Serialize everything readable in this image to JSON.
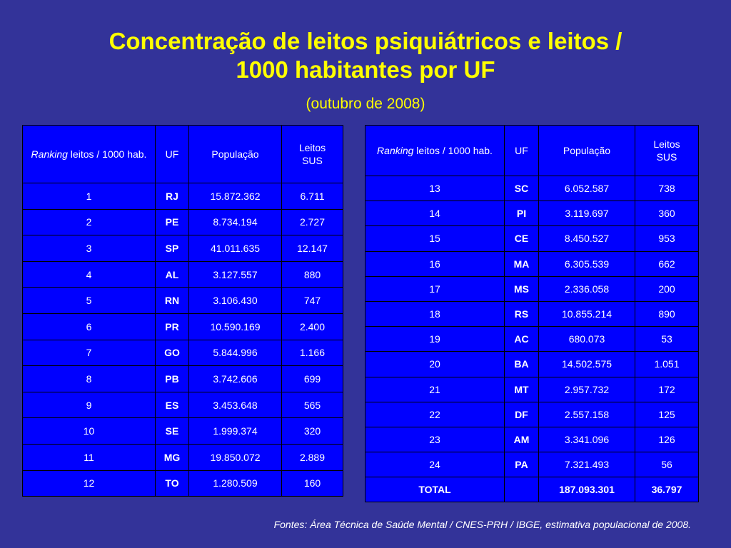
{
  "title_line1": "Concentração de leitos psiquiátricos e leitos /",
  "title_line2": "1000 habitantes por UF",
  "subtitle": "(outubro de 2008)",
  "headers": {
    "ranking_italic": "Ranking",
    "ranking_rest": " leitos / 1000 hab.",
    "uf": "UF",
    "populacao": "População",
    "leitos_line1": "Leitos",
    "leitos_line2": "SUS"
  },
  "left_rows": [
    {
      "rank": "1",
      "uf": "RJ",
      "pop": "15.872.362",
      "leitos": "6.711"
    },
    {
      "rank": "2",
      "uf": "PE",
      "pop": "8.734.194",
      "leitos": "2.727"
    },
    {
      "rank": "3",
      "uf": "SP",
      "pop": "41.011.635",
      "leitos": "12.147"
    },
    {
      "rank": "4",
      "uf": "AL",
      "pop": "3.127.557",
      "leitos": "880"
    },
    {
      "rank": "5",
      "uf": "RN",
      "pop": "3.106.430",
      "leitos": "747"
    },
    {
      "rank": "6",
      "uf": "PR",
      "pop": "10.590.169",
      "leitos": "2.400"
    },
    {
      "rank": "7",
      "uf": "GO",
      "pop": "5.844.996",
      "leitos": "1.166"
    },
    {
      "rank": "8",
      "uf": "PB",
      "pop": "3.742.606",
      "leitos": "699"
    },
    {
      "rank": "9",
      "uf": "ES",
      "pop": "3.453.648",
      "leitos": "565"
    },
    {
      "rank": "10",
      "uf": "SE",
      "pop": "1.999.374",
      "leitos": "320"
    },
    {
      "rank": "11",
      "uf": "MG",
      "pop": "19.850.072",
      "leitos": "2.889"
    },
    {
      "rank": "12",
      "uf": "TO",
      "pop": "1.280.509",
      "leitos": "160"
    }
  ],
  "right_rows": [
    {
      "rank": "13",
      "uf": "SC",
      "pop": "6.052.587",
      "leitos": "738"
    },
    {
      "rank": "14",
      "uf": "PI",
      "pop": "3.119.697",
      "leitos": "360"
    },
    {
      "rank": "15",
      "uf": "CE",
      "pop": "8.450.527",
      "leitos": "953"
    },
    {
      "rank": "16",
      "uf": "MA",
      "pop": "6.305.539",
      "leitos": "662"
    },
    {
      "rank": "17",
      "uf": "MS",
      "pop": "2.336.058",
      "leitos": "200"
    },
    {
      "rank": "18",
      "uf": "RS",
      "pop": "10.855.214",
      "leitos": "890"
    },
    {
      "rank": "19",
      "uf": "AC",
      "pop": "680.073",
      "leitos": "53"
    },
    {
      "rank": "20",
      "uf": "BA",
      "pop": "14.502.575",
      "leitos": "1.051"
    },
    {
      "rank": "21",
      "uf": "MT",
      "pop": "2.957.732",
      "leitos": "172"
    },
    {
      "rank": "22",
      "uf": "DF",
      "pop": "2.557.158",
      "leitos": "125"
    },
    {
      "rank": "23",
      "uf": "AM",
      "pop": "3.341.096",
      "leitos": "126"
    },
    {
      "rank": "24",
      "uf": "PA",
      "pop": "7.321.493",
      "leitos": "56"
    }
  ],
  "total": {
    "label": "TOTAL",
    "uf": "",
    "pop": "187.093.301",
    "leitos": "36.797"
  },
  "source": "Fontes: Área Técnica de Saúde Mental / CNES-PRH / IBGE, estimativa populacional de 2008.",
  "colors": {
    "background": "#333399",
    "title": "#ffff00",
    "table_fill": "#0000ff",
    "table_text": "#ffffff"
  }
}
